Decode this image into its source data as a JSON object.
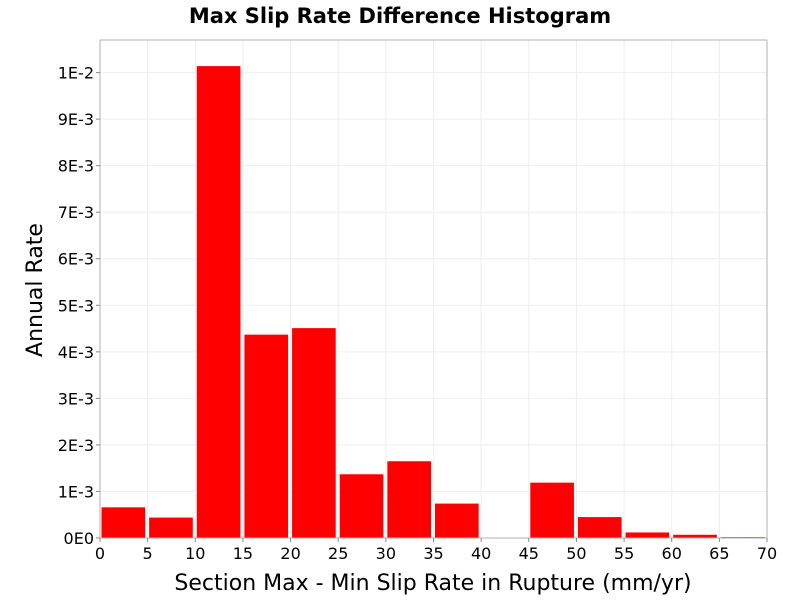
{
  "chart_data": {
    "type": "bar",
    "title": "Max Slip Rate Difference Histogram",
    "xlabel": "Section Max - Min Slip Rate in Rupture (mm/yr)",
    "ylabel": "Annual Rate",
    "bin_width": 5,
    "x_bins_start": [
      0,
      5,
      10,
      15,
      20,
      25,
      30,
      35,
      40,
      45,
      50,
      55,
      60,
      65
    ],
    "values": [
      0.00067,
      0.00045,
      0.01015,
      0.00438,
      0.00452,
      0.00138,
      0.00166,
      0.00075,
      0.0,
      0.0012,
      0.00046,
      0.00013,
      8e-05,
      3e-05
    ],
    "xlim": [
      0,
      70
    ],
    "ylim": [
      0,
      0.0107
    ],
    "x_ticks": [
      0,
      5,
      10,
      15,
      20,
      25,
      30,
      35,
      40,
      45,
      50,
      55,
      60,
      65,
      70
    ],
    "y_ticks": [
      0,
      0.001,
      0.002,
      0.003,
      0.004,
      0.005,
      0.006,
      0.007,
      0.008,
      0.009,
      0.01
    ],
    "x_tick_labels": [
      "0",
      "5",
      "10",
      "15",
      "20",
      "25",
      "30",
      "35",
      "40",
      "45",
      "50",
      "55",
      "60",
      "65",
      "70"
    ],
    "y_tick_labels": [
      "0E0",
      "1E-3",
      "2E-3",
      "3E-3",
      "4E-3",
      "5E-3",
      "6E-3",
      "7E-3",
      "8E-3",
      "9E-3",
      "1E-2"
    ],
    "grid": true,
    "colors": {
      "bar_fill": "#ff0000",
      "bar_stroke": "#ffffff",
      "grid": "#eeeeee",
      "axis": "#b0b0b0",
      "text": "#000000"
    }
  }
}
